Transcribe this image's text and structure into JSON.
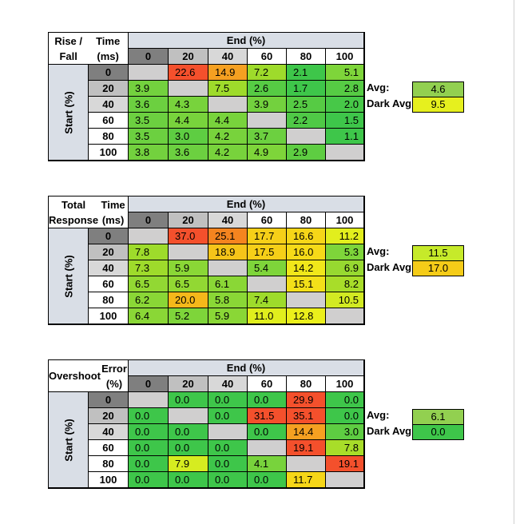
{
  "col_header": "End (%)",
  "row_header": "Start (%)",
  "columns": [
    "0",
    "20",
    "40",
    "60",
    "80",
    "100"
  ],
  "rows": [
    "0",
    "20",
    "40",
    "60",
    "80",
    "100"
  ],
  "tables": [
    {
      "title_line1": "Rise / Fall",
      "title_line2": "Time (ms)",
      "avg_label": "Avg:",
      "avg_value": "4.6",
      "avg_color": "#92d050",
      "dark_label": "Dark Avg:",
      "dark_value": "9.5",
      "dark_color": "#e6f01e",
      "cells": [
        [
          {
            "v": "",
            "c": "#d0cfcf"
          },
          {
            "v": "22.6",
            "c": "#f4502c"
          },
          {
            "v": "14.9",
            "c": "#f5a021"
          },
          {
            "v": "7.2",
            "c": "#9edb2b"
          },
          {
            "v": "2.1",
            "c": "#3ec64a"
          },
          {
            "v": "5.1",
            "c": "#7ed53a"
          }
        ],
        [
          {
            "v": "3.9",
            "c": "#73d13e"
          },
          {
            "v": "",
            "c": "#d0cfcf"
          },
          {
            "v": "7.5",
            "c": "#9edb2b"
          },
          {
            "v": "2.6",
            "c": "#56cb44"
          },
          {
            "v": "1.7",
            "c": "#3ec64a"
          },
          {
            "v": "2.8",
            "c": "#56cb44"
          }
        ],
        [
          {
            "v": "3.6",
            "c": "#6cd040"
          },
          {
            "v": "4.3",
            "c": "#78d33c"
          },
          {
            "v": "",
            "c": "#d0cfcf"
          },
          {
            "v": "3.9",
            "c": "#73d13e"
          },
          {
            "v": "2.5",
            "c": "#56cb44"
          },
          {
            "v": "2.0",
            "c": "#47c848"
          }
        ],
        [
          {
            "v": "3.5",
            "c": "#6cd040"
          },
          {
            "v": "4.4",
            "c": "#78d33c"
          },
          {
            "v": "4.4",
            "c": "#78d33c"
          },
          {
            "v": "",
            "c": "#d0cfcf"
          },
          {
            "v": "2.2",
            "c": "#4fc946"
          },
          {
            "v": "1.5",
            "c": "#3ec64a"
          }
        ],
        [
          {
            "v": "3.5",
            "c": "#6cd040"
          },
          {
            "v": "3.0",
            "c": "#5ecd42"
          },
          {
            "v": "4.2",
            "c": "#78d33c"
          },
          {
            "v": "3.7",
            "c": "#6cd040"
          },
          {
            "v": "",
            "c": "#d0cfcf"
          },
          {
            "v": "1.1",
            "c": "#3ec64a"
          }
        ],
        [
          {
            "v": "3.8",
            "c": "#73d13e"
          },
          {
            "v": "3.6",
            "c": "#6cd040"
          },
          {
            "v": "4.2",
            "c": "#78d33c"
          },
          {
            "v": "4.9",
            "c": "#7ed53a"
          },
          {
            "v": "2.9",
            "c": "#5ecd42"
          },
          {
            "v": "",
            "c": "#d0cfcf"
          }
        ]
      ]
    },
    {
      "title_line1": "Total Response",
      "title_line2": "Time (ms)",
      "avg_label": "Avg:",
      "avg_value": "11.5",
      "avg_color": "#c6ea2a",
      "dark_label": "Dark Avg:",
      "dark_value": "17.0",
      "dark_color": "#f5cc18",
      "cells": [
        [
          {
            "v": "",
            "c": "#d0cfcf"
          },
          {
            "v": "37.0",
            "c": "#f4502c"
          },
          {
            "v": "25.1",
            "c": "#f5841f"
          },
          {
            "v": "17.7",
            "c": "#f6cf18"
          },
          {
            "v": "16.6",
            "c": "#f6d618"
          },
          {
            "v": "11.2",
            "c": "#e2ee1d"
          }
        ],
        [
          {
            "v": "7.8",
            "c": "#9edb2b"
          },
          {
            "v": "",
            "c": "#d0cfcf"
          },
          {
            "v": "18.9",
            "c": "#f5c419"
          },
          {
            "v": "17.5",
            "c": "#f6cf18"
          },
          {
            "v": "16.0",
            "c": "#f6da18"
          },
          {
            "v": "5.3",
            "c": "#7ed53a"
          }
        ],
        [
          {
            "v": "7.3",
            "c": "#9edb2b"
          },
          {
            "v": "5.9",
            "c": "#8ad736"
          },
          {
            "v": "",
            "c": "#d0cfcf"
          },
          {
            "v": "5.4",
            "c": "#7ed53a"
          },
          {
            "v": "14.2",
            "c": "#f0e71a"
          },
          {
            "v": "6.9",
            "c": "#97d930"
          }
        ],
        [
          {
            "v": "6.5",
            "c": "#92d833"
          },
          {
            "v": "6.5",
            "c": "#92d833"
          },
          {
            "v": "6.1",
            "c": "#8ad736"
          },
          {
            "v": "",
            "c": "#d0cfcf"
          },
          {
            "v": "15.1",
            "c": "#f3e019"
          },
          {
            "v": "8.2",
            "c": "#a8dd29"
          }
        ],
        [
          {
            "v": "6.2",
            "c": "#8ad736"
          },
          {
            "v": "20.0",
            "c": "#f5b81a"
          },
          {
            "v": "5.8",
            "c": "#8ad736"
          },
          {
            "v": "7.4",
            "c": "#9edb2b"
          },
          {
            "v": "",
            "c": "#d0cfcf"
          },
          {
            "v": "10.5",
            "c": "#d2ea22"
          }
        ],
        [
          {
            "v": "6.4",
            "c": "#8ad736"
          },
          {
            "v": "5.2",
            "c": "#7ed53a"
          },
          {
            "v": "5.9",
            "c": "#8ad736"
          },
          {
            "v": "11.0",
            "c": "#e0ee1d"
          },
          {
            "v": "12.8",
            "c": "#ebef1b"
          },
          {
            "v": "",
            "c": "#d0cfcf"
          }
        ]
      ]
    },
    {
      "title_line1": "Overshoot",
      "title_line2": "Error (%)",
      "avg_label": "Avg:",
      "avg_value": "6.1",
      "avg_color": "#92d050",
      "dark_label": "Dark Avg:",
      "dark_value": "0.0",
      "dark_color": "#3ec64a",
      "cells": [
        [
          {
            "v": "",
            "c": "#d0cfcf"
          },
          {
            "v": "0.0",
            "c": "#3ec64a"
          },
          {
            "v": "0.0",
            "c": "#3ec64a"
          },
          {
            "v": "0.0",
            "c": "#3ec64a"
          },
          {
            "v": "29.9",
            "c": "#f4502c"
          },
          {
            "v": "0.0",
            "c": "#3ec64a"
          }
        ],
        [
          {
            "v": "0.0",
            "c": "#3ec64a"
          },
          {
            "v": "",
            "c": "#d0cfcf"
          },
          {
            "v": "0.0",
            "c": "#3ec64a"
          },
          {
            "v": "31.5",
            "c": "#f4502c"
          },
          {
            "v": "35.1",
            "c": "#f4502c"
          },
          {
            "v": "0.0",
            "c": "#3ec64a"
          }
        ],
        [
          {
            "v": "0.0",
            "c": "#3ec64a"
          },
          {
            "v": "0.0",
            "c": "#3ec64a"
          },
          {
            "v": "",
            "c": "#d0cfcf"
          },
          {
            "v": "0.0",
            "c": "#3ec64a"
          },
          {
            "v": "14.4",
            "c": "#f5a021"
          },
          {
            "v": "3.0",
            "c": "#5ecd42"
          }
        ],
        [
          {
            "v": "0.0",
            "c": "#3ec64a"
          },
          {
            "v": "0.0",
            "c": "#3ec64a"
          },
          {
            "v": "0.0",
            "c": "#3ec64a"
          },
          {
            "v": "",
            "c": "#d0cfcf"
          },
          {
            "v": "19.1",
            "c": "#f4502c"
          },
          {
            "v": "7.8",
            "c": "#a8dd29"
          }
        ],
        [
          {
            "v": "0.0",
            "c": "#3ec64a"
          },
          {
            "v": "7.9",
            "c": "#d6ec20"
          },
          {
            "v": "0.0",
            "c": "#3ec64a"
          },
          {
            "v": "4.1",
            "c": "#78d33c"
          },
          {
            "v": "",
            "c": "#d0cfcf"
          },
          {
            "v": "19.1",
            "c": "#f4502c"
          }
        ],
        [
          {
            "v": "0.0",
            "c": "#3ec64a"
          },
          {
            "v": "0.0",
            "c": "#3ec64a"
          },
          {
            "v": "0.0",
            "c": "#3ec64a"
          },
          {
            "v": "0.0",
            "c": "#3ec64a"
          },
          {
            "v": "11.7",
            "c": "#f6d618"
          },
          {
            "v": "",
            "c": "#d0cfcf"
          }
        ]
      ]
    }
  ]
}
